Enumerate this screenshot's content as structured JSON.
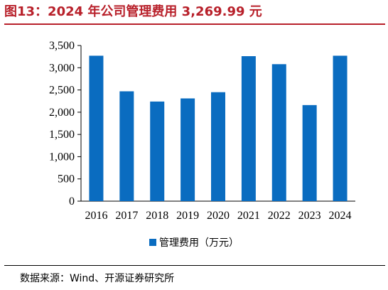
{
  "title": "图13：2024 年公司管理费用 3,269.99 元",
  "source": "数据来源：Wind、开源证券研究所",
  "colors": {
    "title": "#b8202a",
    "bar": "#0a6cc0",
    "axis": "#000000"
  },
  "chart_data": {
    "type": "bar",
    "categories": [
      "2016",
      "2017",
      "2018",
      "2019",
      "2020",
      "2021",
      "2022",
      "2023",
      "2024"
    ],
    "series": [
      {
        "name": "管理费用（万元）",
        "values": [
          3270,
          2470,
          2240,
          2310,
          2450,
          3260,
          3080,
          2160,
          3270
        ]
      }
    ],
    "yticks": [
      "0",
      "500",
      "1,000",
      "1,500",
      "2,000",
      "2,500",
      "3,000",
      "3,500"
    ],
    "ylim": [
      0,
      3500
    ],
    "grid": false,
    "legend": "bottom-center"
  }
}
